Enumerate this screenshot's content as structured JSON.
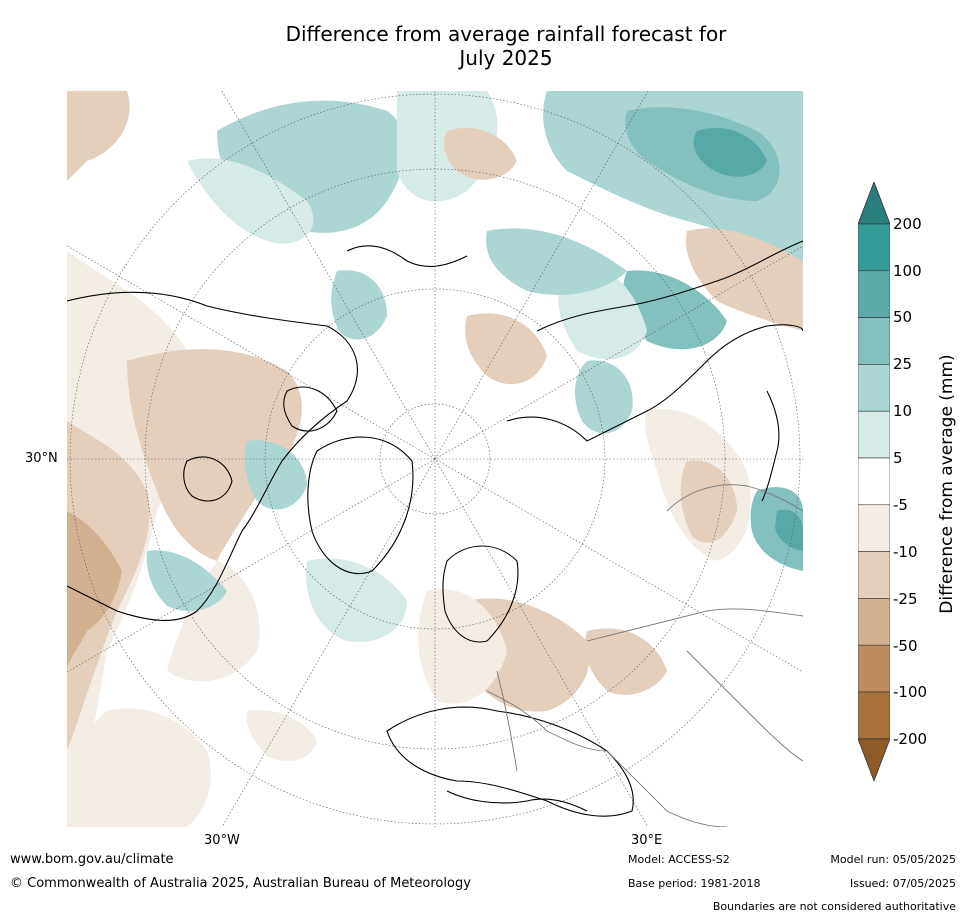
{
  "title": {
    "line1": "Difference from average rainfall forecast for",
    "line2": "July 2025"
  },
  "map": {
    "projection": "north polar stereographic",
    "lat_label": "30°N",
    "lon_labels": [
      "30°W",
      "30°E"
    ],
    "wet_colors": [
      "#d6eae8",
      "#acd6d3",
      "#83c1be",
      "#57a9a6",
      "#2f9693"
    ],
    "dry_colors": [
      "#f3ede6",
      "#e4cfbd",
      "#d2b191",
      "#be8c5e"
    ]
  },
  "colorbar": {
    "label": "Difference from average (mm)",
    "ticks": [
      "200",
      "100",
      "50",
      "25",
      "10",
      "5",
      "-5",
      "-10",
      "-25",
      "-50",
      "-100",
      "-200"
    ],
    "colors": [
      "#2a7f7c",
      "#349b97",
      "#5aaaa8",
      "#83c1be",
      "#acd6d3",
      "#d6eae8",
      "#ffffff",
      "#f3ede6",
      "#e4cfbd",
      "#d2b191",
      "#be8c5e",
      "#a8733b",
      "#8e5a27"
    ]
  },
  "footer": {
    "website": "www.bom.gov.au/climate",
    "copyright": "© Commonwealth of Australia 2025, Australian Bureau of Meteorology",
    "model": "Model: ACCESS-S2",
    "base_period": "Base period: 1981-2018",
    "model_run": "Model run: 05/05/2025",
    "issued": "Issued: 07/05/2025",
    "disclaimer": "Boundaries are not considered authoritative"
  }
}
